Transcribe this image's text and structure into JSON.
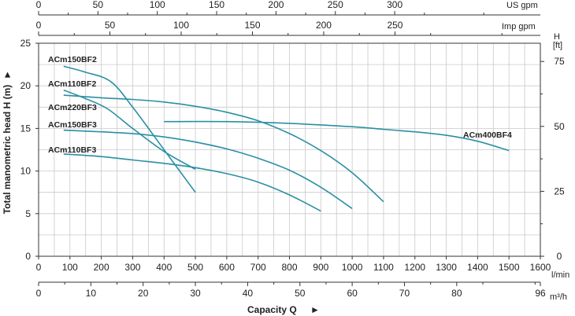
{
  "chart_data": {
    "type": "line",
    "title": "",
    "xlabel": "Capacity Q",
    "xlabel_arrow": "►",
    "ylabel": "Total manometric head H (m)",
    "ylabel_arrow": "►",
    "xlim": [
      0,
      1600
    ],
    "ylim": [
      0,
      25
    ],
    "grid": true,
    "axes": {
      "lmin": {
        "unit": "l/min",
        "ticks": [
          0,
          100,
          200,
          300,
          400,
          500,
          600,
          700,
          800,
          900,
          1000,
          1100,
          1200,
          1300,
          1400,
          1500,
          1600
        ]
      },
      "m3h": {
        "unit": "m³/h",
        "max": 96,
        "ticks": [
          0,
          10,
          20,
          30,
          40,
          50,
          60,
          70,
          80,
          96
        ]
      },
      "us_gpm": {
        "unit": "US gpm",
        "ticks": [
          0,
          50,
          100,
          150,
          200,
          250,
          300
        ]
      },
      "imp_gpm": {
        "unit": "Imp gpm",
        "ticks": [
          0,
          50,
          100,
          150,
          200,
          250
        ]
      },
      "head_m": {
        "ticks": [
          0,
          5,
          10,
          15,
          20,
          25
        ]
      },
      "head_ft": {
        "unit_top": "H",
        "unit_bottom": "[ft]",
        "ticks": [
          0,
          25,
          50,
          75
        ]
      }
    },
    "series": [
      {
        "name": "ACm150BF2",
        "x": [
          80,
          150,
          230,
          300,
          400,
          500
        ],
        "y": [
          22.3,
          21.6,
          20.5,
          17.5,
          12.5,
          7.5
        ]
      },
      {
        "name": "ACm110BF2",
        "x": [
          80,
          150,
          220,
          300,
          400,
          500
        ],
        "y": [
          19.5,
          18.5,
          17.3,
          15.0,
          12.3,
          10.2
        ]
      },
      {
        "name": "ACm220BF3",
        "x": [
          80,
          200,
          300,
          400,
          500,
          600,
          700,
          800,
          900,
          1000,
          1100
        ],
        "y": [
          18.9,
          18.6,
          18.4,
          18.1,
          17.6,
          16.9,
          15.9,
          14.4,
          12.4,
          9.8,
          6.4
        ]
      },
      {
        "name": "ACm150BF3",
        "x": [
          80,
          200,
          300,
          400,
          500,
          600,
          700,
          800,
          900,
          1000
        ],
        "y": [
          14.8,
          14.6,
          14.4,
          14.0,
          13.4,
          12.6,
          11.5,
          10.1,
          8.1,
          5.6
        ]
      },
      {
        "name": "ACm110BF3",
        "x": [
          80,
          200,
          300,
          400,
          500,
          600,
          700,
          800,
          900
        ],
        "y": [
          12.0,
          11.7,
          11.3,
          10.9,
          10.4,
          9.7,
          8.7,
          7.2,
          5.3
        ]
      },
      {
        "name": "ACm400BF4",
        "x": [
          400,
          600,
          800,
          1000,
          1100,
          1200,
          1300,
          1400,
          1500
        ],
        "y": [
          15.8,
          15.8,
          15.6,
          15.2,
          14.9,
          14.6,
          14.2,
          13.5,
          12.4
        ]
      }
    ],
    "curve_color": "#2a8fa4"
  }
}
